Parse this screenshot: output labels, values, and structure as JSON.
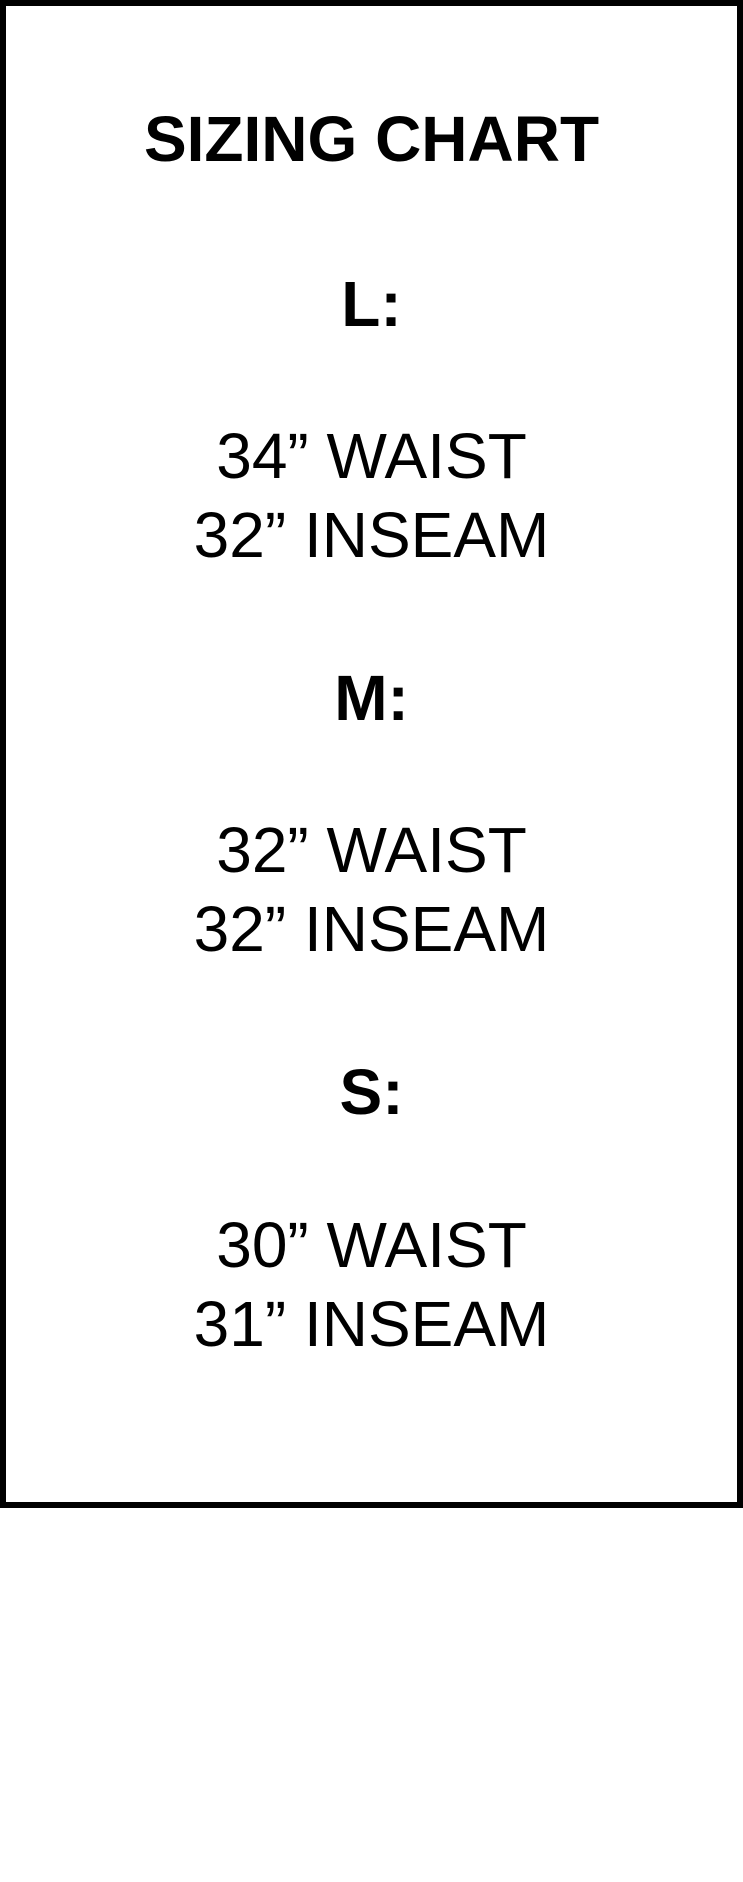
{
  "title": "SIZING CHART",
  "sizes": [
    {
      "label": "L:",
      "waist": "34” WAIST",
      "inseam": "32” INSEAM"
    },
    {
      "label": "M:",
      "waist": "32” WAIST",
      "inseam": "32” INSEAM"
    },
    {
      "label": "S:",
      "waist": "30” WAIST",
      "inseam": "31” INSEAM"
    }
  ],
  "colors": {
    "text": "#000000",
    "border": "#000000",
    "background": "#ffffff"
  }
}
